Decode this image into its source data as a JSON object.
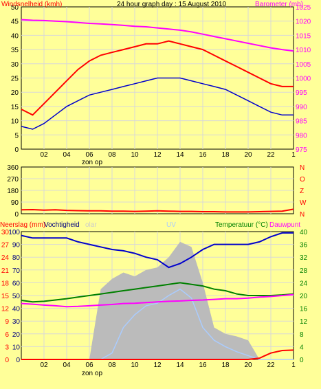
{
  "title": "24 hour graph day : 15 August 2010",
  "chart_data": [
    {
      "type": "line",
      "panel": "wind_barometer",
      "left_axis_label": "Windsnelheid (kmh)",
      "right_axis_label": "Barometer (mb)",
      "left_ylim": [
        0,
        50
      ],
      "left_ticks": [
        "0",
        "5",
        "10",
        "15",
        "20",
        "25",
        "30",
        "35",
        "40",
        "45",
        "50"
      ],
      "right_ylim": [
        975,
        1025
      ],
      "right_ticks": [
        "975",
        "980",
        "985",
        "990",
        "995",
        "1000",
        "1005",
        "1010",
        "1015",
        "1020",
        "1025"
      ],
      "x_ticks": [
        "02",
        "04",
        "06",
        "08",
        "10",
        "12",
        "14",
        "16",
        "18",
        "20",
        "22",
        "1"
      ],
      "x_annotation": "zon op",
      "x": [
        0,
        1,
        2,
        3,
        4,
        5,
        6,
        7,
        8,
        9,
        10,
        11,
        12,
        13,
        14,
        15,
        16,
        17,
        18,
        19,
        20,
        21,
        22,
        23,
        24
      ],
      "series": [
        {
          "key": "gust",
          "color": "#FF0000",
          "values": [
            14,
            12,
            16,
            20,
            24,
            28,
            31,
            33,
            34,
            35,
            36,
            37,
            37,
            38,
            37,
            36,
            35,
            33,
            31,
            29,
            27,
            25,
            23,
            22,
            22
          ]
        },
        {
          "key": "avg_wind",
          "color": "#0000CC",
          "values": [
            8,
            7,
            9,
            12,
            15,
            17,
            19,
            20,
            21,
            22,
            23,
            24,
            25,
            25,
            25,
            24,
            23,
            22,
            21,
            19,
            17,
            15,
            13,
            12,
            12
          ]
        },
        {
          "key": "barometer",
          "color": "#FF00FF",
          "values": [
            1020.5,
            1020.3,
            1020.2,
            1020.0,
            1019.8,
            1019.5,
            1019.2,
            1019.0,
            1018.8,
            1018.5,
            1018.2,
            1018.0,
            1017.6,
            1017.2,
            1016.8,
            1016.2,
            1015.4,
            1014.6,
            1013.8,
            1013.0,
            1012.2,
            1011.4,
            1010.6,
            1010.0,
            1009.5
          ]
        }
      ]
    },
    {
      "type": "line",
      "panel": "wind_direction",
      "left_ylim": [
        0,
        360
      ],
      "left_ticks": [
        "0",
        "90",
        "180",
        "270",
        "360"
      ],
      "right_labels": [
        "N",
        "W",
        "Z",
        "O",
        "N"
      ],
      "x": [
        0,
        1,
        2,
        3,
        4,
        5,
        6,
        7,
        8,
        9,
        10,
        11,
        12,
        13,
        14,
        15,
        16,
        17,
        18,
        19,
        20,
        21,
        22,
        23,
        24
      ],
      "series": [
        {
          "key": "direction",
          "color": "#FF0000",
          "values": [
            30,
            32,
            28,
            30,
            26,
            24,
            22,
            22,
            20,
            20,
            18,
            20,
            22,
            20,
            18,
            18,
            16,
            16,
            14,
            14,
            14,
            16,
            18,
            20,
            35
          ]
        }
      ]
    },
    {
      "type": "line",
      "panel": "rain_humidity_temp",
      "left_axis_label": "Neerslag (mm)",
      "left_axis_label2": "Vochtigheid",
      "center_label_1": "olar",
      "center_label_2": "UV",
      "right_axis_label": "Temperatuur (°C)",
      "right_axis_label2": "Dauwpunt",
      "rain_ticks": [
        "0",
        "3",
        "6",
        "9",
        "12",
        "15",
        "18",
        "21",
        "24",
        "27",
        "30"
      ],
      "humidity_ticks": [
        "0",
        "10",
        "20",
        "30",
        "40",
        "50",
        "60",
        "70",
        "80",
        "90",
        "100"
      ],
      "temp_ticks": [
        "0",
        "4",
        "8",
        "12",
        "16",
        "20",
        "24",
        "28",
        "32",
        "36",
        "40"
      ],
      "humidity_ylim": [
        0,
        100
      ],
      "temp_ylim": [
        0,
        40
      ],
      "x_ticks": [
        "02",
        "04",
        "06",
        "08",
        "10",
        "12",
        "14",
        "16",
        "18",
        "20",
        "22",
        "1"
      ],
      "x_annotation": "zon op",
      "x": [
        0,
        1,
        2,
        3,
        4,
        5,
        6,
        7,
        8,
        9,
        10,
        11,
        12,
        13,
        14,
        15,
        16,
        17,
        18,
        19,
        20,
        21,
        22,
        23,
        24
      ],
      "series": [
        {
          "key": "solar",
          "color": "#BBBBBB",
          "values": [
            0,
            0,
            0,
            0,
            0,
            0,
            0,
            55,
            63,
            68,
            65,
            70,
            72,
            80,
            92,
            88,
            60,
            25,
            20,
            18,
            15,
            0,
            0,
            0,
            0
          ]
        },
        {
          "key": "uv",
          "color": "#AACCFF",
          "values": [
            0,
            0,
            0,
            0,
            0,
            0,
            0,
            0,
            5,
            25,
            35,
            42,
            44,
            50,
            55,
            48,
            25,
            15,
            10,
            6,
            3,
            0,
            0,
            0,
            0
          ]
        },
        {
          "key": "humidity",
          "color": "#0000CC",
          "values": [
            97,
            95,
            95,
            95,
            95,
            92,
            90,
            88,
            86,
            85,
            83,
            80,
            78,
            72,
            75,
            80,
            86,
            90,
            90,
            90,
            90,
            92,
            96,
            99,
            99
          ]
        },
        {
          "key": "temperature",
          "color": "#008000",
          "values": [
            18.5,
            18.0,
            18.2,
            18.6,
            19.0,
            19.5,
            20.0,
            20.5,
            21.0,
            21.5,
            22.0,
            22.5,
            23.0,
            23.5,
            24.0,
            23.5,
            23.0,
            22.0,
            21.5,
            20.5,
            20.0,
            20.0,
            20.0,
            20.2,
            20.5
          ]
        },
        {
          "key": "dewpoint",
          "color": "#FF00FF",
          "values": [
            17.5,
            17.3,
            17.0,
            16.8,
            16.5,
            16.6,
            16.8,
            17.0,
            17.2,
            17.5,
            17.6,
            17.8,
            18.0,
            18.2,
            18.3,
            18.5,
            18.6,
            18.8,
            19.0,
            19.0,
            19.2,
            19.5,
            19.7,
            20.0,
            20.3
          ]
        },
        {
          "key": "rain",
          "color": "#FF0000",
          "values": [
            0,
            0,
            0,
            0,
            0,
            0,
            0,
            0,
            0,
            0,
            0,
            0,
            0,
            0,
            0,
            0,
            0,
            0,
            0,
            0,
            0,
            0.3,
            1.5,
            2.1,
            2.2
          ]
        }
      ]
    }
  ]
}
